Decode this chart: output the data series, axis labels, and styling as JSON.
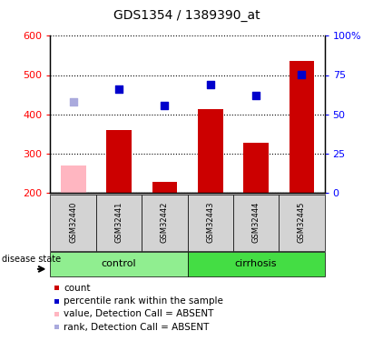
{
  "title": "GDS1354 / 1389390_at",
  "samples": [
    "GSM32440",
    "GSM32441",
    "GSM32442",
    "GSM32443",
    "GSM32444",
    "GSM32445"
  ],
  "bar_values": [
    270,
    360,
    228,
    413,
    328,
    535
  ],
  "bar_colors": [
    "#ffb6c1",
    "#cc0000",
    "#cc0000",
    "#cc0000",
    "#cc0000",
    "#cc0000"
  ],
  "dot_values": [
    432,
    465,
    422,
    475,
    447,
    502
  ],
  "dot_colors": [
    "#aaaadd",
    "#0000cc",
    "#0000cc",
    "#0000cc",
    "#0000cc",
    "#0000cc"
  ],
  "ylim_left": [
    200,
    600
  ],
  "ylim_right": [
    0,
    100
  ],
  "yticks_left": [
    200,
    300,
    400,
    500,
    600
  ],
  "yticks_right": [
    0,
    25,
    50,
    75,
    100
  ],
  "ytick_labels_right": [
    "0",
    "25",
    "50",
    "75",
    "100%"
  ],
  "bar_width": 0.55,
  "group_labels": [
    "control",
    "cirrhosis"
  ],
  "group_colors": [
    "#90EE90",
    "#44dd44"
  ],
  "group_sample_counts": [
    3,
    3
  ],
  "disease_state_label": "disease state",
  "legend_labels": [
    "count",
    "percentile rank within the sample",
    "value, Detection Call = ABSENT",
    "rank, Detection Call = ABSENT"
  ],
  "legend_colors": [
    "#cc0000",
    "#0000cc",
    "#ffb6c1",
    "#aaaadd"
  ],
  "title_fontsize": 10,
  "tick_fontsize": 8,
  "sample_fontsize": 6,
  "legend_fontsize": 7.5
}
